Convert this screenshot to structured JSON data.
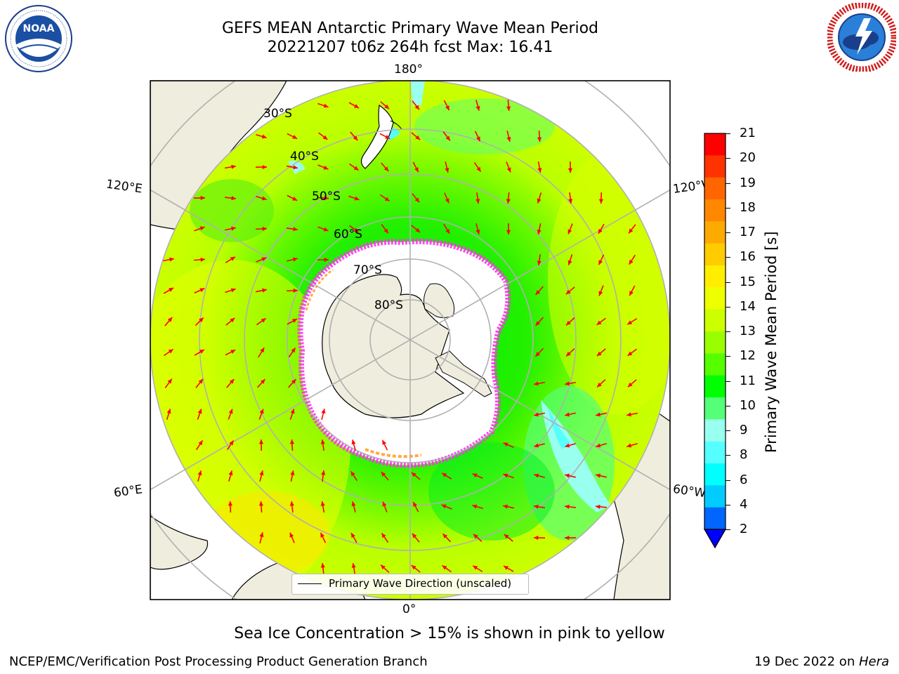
{
  "header": {
    "title_line1": "GEFS MEAN Antarctic Primary Wave Mean Period",
    "title_line2": "20221207 t06z 264h fcst   Max: 16.41"
  },
  "logos": {
    "left": "NOAA",
    "left_ring": "NATIONAL OCEANIC AND ATMOSPHERIC ADMINISTRATION · U.S. DEPARTMENT OF COMMERCE",
    "right_ring": "NATIONAL WEATHER SERVICE"
  },
  "map": {
    "projection": "south-polar-stereographic",
    "lon_labels": {
      "top": "180°",
      "bottom": "0°",
      "upper_left": "120°E",
      "upper_right": "120°W",
      "lower_left": "60°E",
      "lower_right": "60°W"
    },
    "lat_labels": [
      "30°S",
      "40°S",
      "50°S",
      "60°S",
      "70°S",
      "80°S"
    ],
    "colors": {
      "land": "#efedde",
      "ice": "#ffffff",
      "ice_edge": "#ff44ee",
      "vector": "#ff0000",
      "grid": "#b0b0b0"
    }
  },
  "legend": {
    "label": "Primary Wave Direction (unscaled)"
  },
  "colorbar": {
    "label": "Primary Wave Mean Period [s]",
    "ticks": [
      "21",
      "20",
      "19",
      "18",
      "17",
      "16",
      "15",
      "14",
      "13",
      "12",
      "11",
      "10",
      "9",
      "8",
      "6",
      "4",
      "2"
    ],
    "colors_top_to_bottom": [
      "#ff0000",
      "#ff3300",
      "#ff6600",
      "#ff8800",
      "#ffaa00",
      "#ffcc00",
      "#ffee00",
      "#eeff00",
      "#ccff00",
      "#99ff00",
      "#55ff00",
      "#00ff00",
      "#55ff77",
      "#99ffee",
      "#55ffff",
      "#00ffff",
      "#00ccff",
      "#0066ff"
    ],
    "extend_color": "#0000ff"
  },
  "caption": "Sea Ice Concentration > 15% is shown in pink to yellow",
  "footer": {
    "left": "NCEP/EMC/Verification Post Processing Product Generation Branch",
    "right_date": "19 Dec 2022 on ",
    "right_host": "Hera"
  }
}
